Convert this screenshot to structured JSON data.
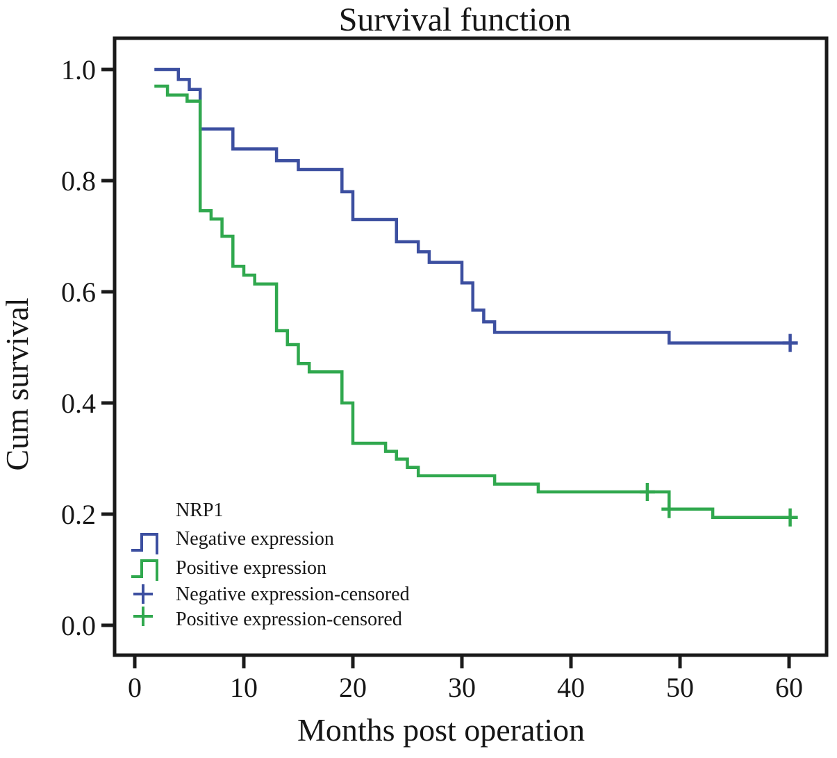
{
  "figure_title": "Survival function",
  "chart_data": {
    "type": "line",
    "subtype": "kaplan-meier-step-survival",
    "title": "Survival function",
    "xlabel": "Months post operation",
    "ylabel": "Cum survival",
    "xlim": [
      -1.9,
      63.4
    ],
    "ylim": [
      -0.05,
      1.06
    ],
    "grid": false,
    "legend_position": "inside-lower-left",
    "x_ticks": {
      "values": [
        0,
        10,
        20,
        30,
        40,
        50,
        60
      ],
      "labels": [
        "0",
        "10",
        "20",
        "30",
        "40",
        "50",
        "60"
      ]
    },
    "y_ticks": {
      "values": [
        1.0,
        0.8,
        0.6,
        0.4,
        0.2,
        0.0
      ],
      "labels": [
        "1.0",
        "0.8",
        "0.6",
        "0.4",
        "0.2",
        "0.0"
      ]
    },
    "series": [
      {
        "name": "Negative expression",
        "color": "#3c4fa0",
        "points": [
          [
            1.8,
            1.0
          ],
          [
            4,
            0.982
          ],
          [
            5,
            0.964
          ],
          [
            6,
            0.893
          ],
          [
            9,
            0.857
          ],
          [
            13,
            0.836
          ],
          [
            15,
            0.82
          ],
          [
            19,
            0.78
          ],
          [
            20,
            0.73
          ],
          [
            24,
            0.69
          ],
          [
            26,
            0.672
          ],
          [
            27,
            0.653
          ],
          [
            30,
            0.616
          ],
          [
            31,
            0.567
          ],
          [
            32,
            0.546
          ],
          [
            33,
            0.527
          ],
          [
            49,
            0.508
          ]
        ],
        "end_x": 60.8,
        "censored": [
          [
            60.1,
            0.508
          ]
        ]
      },
      {
        "name": "Positive expression",
        "color": "#30a84e",
        "points": [
          [
            1.8,
            0.97
          ],
          [
            3,
            0.954
          ],
          [
            4.8,
            0.943
          ],
          [
            6,
            0.746
          ],
          [
            7,
            0.731
          ],
          [
            8,
            0.7
          ],
          [
            9,
            0.646
          ],
          [
            10,
            0.63
          ],
          [
            11,
            0.614
          ],
          [
            13,
            0.53
          ],
          [
            14,
            0.505
          ],
          [
            15,
            0.471
          ],
          [
            16,
            0.456
          ],
          [
            19,
            0.4
          ],
          [
            20,
            0.3275
          ],
          [
            23,
            0.313
          ],
          [
            24,
            0.299
          ],
          [
            25,
            0.284
          ],
          [
            26,
            0.269
          ],
          [
            33,
            0.254
          ],
          [
            37,
            0.24
          ],
          [
            49,
            0.209
          ],
          [
            53,
            0.194
          ]
        ],
        "end_x": 60.8,
        "censored": [
          [
            47,
            0.24
          ],
          [
            49,
            0.209
          ],
          [
            60.1,
            0.194
          ]
        ]
      }
    ],
    "legend": {
      "title": "NRP1",
      "entries": [
        {
          "label": "Negative expression",
          "marker": "step-line",
          "color": "#3c4fa0"
        },
        {
          "label": "Positive expression",
          "marker": "step-line",
          "color": "#30a84e"
        },
        {
          "label": "Negative expression-censored",
          "marker": "plus",
          "color": "#3c4fa0"
        },
        {
          "label": "Positive expression-censored",
          "marker": "plus",
          "color": "#30a84e"
        }
      ]
    },
    "axis_color": "#1a1a1a"
  }
}
